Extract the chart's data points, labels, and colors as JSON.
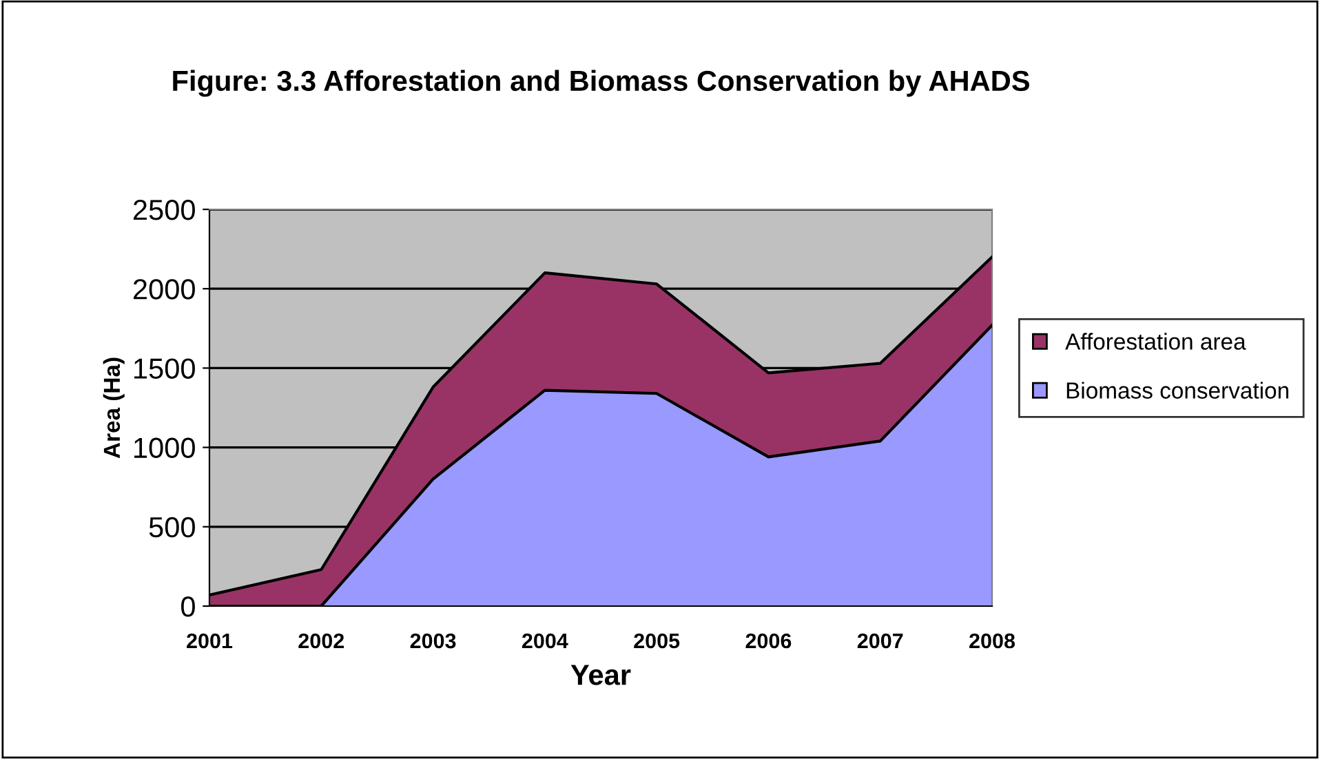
{
  "chart_data": {
    "type": "area",
    "title": "Figure: 3.3 Afforestation and Biomass Conservation by AHADS",
    "xlabel": "Year",
    "ylabel": "Area (Ha)",
    "categories": [
      "2001",
      "2002",
      "2003",
      "2004",
      "2005",
      "2006",
      "2007",
      "2008"
    ],
    "stacked": true,
    "series": [
      {
        "name": "Biomass conservation",
        "color": "#9999ff",
        "values": [
          0,
          0,
          800,
          1360,
          1340,
          940,
          1040,
          1770
        ]
      },
      {
        "name": "Afforestation area",
        "color": "#993366",
        "values": [
          70,
          230,
          580,
          740,
          690,
          530,
          490,
          430
        ]
      }
    ],
    "ylim": [
      0,
      2500
    ],
    "yticks": [
      0,
      500,
      1000,
      1500,
      2000,
      2500
    ],
    "grid": "y",
    "legend": "right"
  }
}
